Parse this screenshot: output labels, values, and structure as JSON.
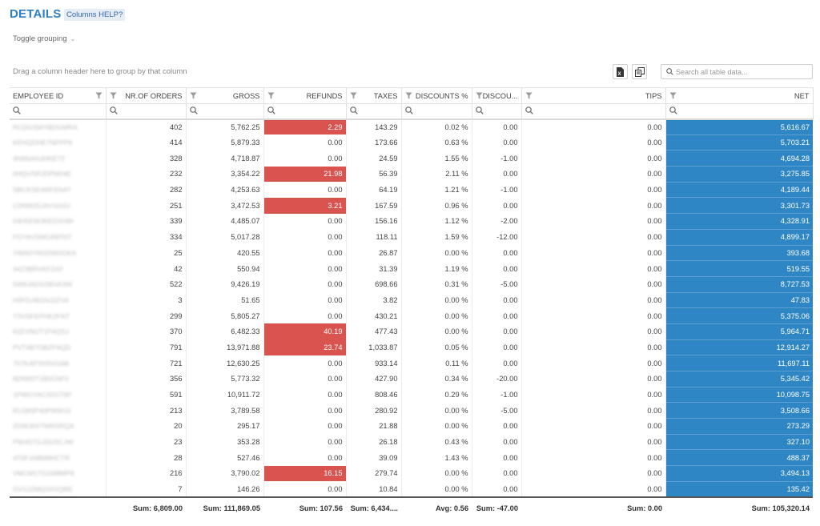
{
  "page": {
    "title": "DETAILS",
    "help_label": "Columns HELP?"
  },
  "grouping": {
    "toggle_label": "Toggle grouping",
    "drag_hint": "Drag a column header here to group by that column"
  },
  "toolbar": {
    "search_placeholder": "Search all table data...",
    "export_excel_icon": "excel-export-icon",
    "column_chooser_icon": "column-chooser-icon"
  },
  "colors": {
    "accent": "#2d7fc1",
    "net_highlight": "#2f86c5",
    "refund_highlight": "#d9534f"
  },
  "columns": [
    "EMPLOYEE ID",
    "NR.OF ORDERS",
    "GROSS",
    "REFUNDS",
    "TAXES",
    "DISCOUNTS %",
    "DISCOU...",
    "TIPS",
    "NET"
  ],
  "rows": [
    {
      "emp": "RCDGSMYBDGMRA",
      "orders": "402",
      "gross": "5,762.25",
      "refunds": "2.29",
      "taxes": "143.29",
      "disc_pct": "0.02 %",
      "disc": "0.00",
      "tips": "0.00",
      "net": "5,616.67"
    },
    {
      "emp": "KEHQDHE7NFPP6",
      "orders": "414",
      "gross": "5,879.33",
      "refunds": "0.00",
      "taxes": "173.66",
      "disc_pct": "0.63 %",
      "disc": "0.00",
      "tips": "0.00",
      "net": "5,703.21"
    },
    {
      "emp": "4N6NAHJHKE72",
      "orders": "328",
      "gross": "4,718.87",
      "refunds": "0.00",
      "taxes": "24.59",
      "disc_pct": "1.55 %",
      "disc": "-1.00",
      "tips": "0.00",
      "net": "4,694.28"
    },
    {
      "emp": "0HQVSRJDPM04E",
      "orders": "232",
      "gross": "3,354.22",
      "refunds": "21.98",
      "taxes": "56.39",
      "disc_pct": "2.11 %",
      "disc": "0.00",
      "tips": "0.00",
      "net": "3,275.85"
    },
    {
      "emp": "SBCKSEARFEN47",
      "orders": "282",
      "gross": "4,253.63",
      "refunds": "0.00",
      "taxes": "64.19",
      "disc_pct": "1.21 %",
      "disc": "-1.00",
      "tips": "0.00",
      "net": "4,189.44"
    },
    {
      "emp": "C0NW25JAYGG0J",
      "orders": "251",
      "gross": "3,472.53",
      "refunds": "3.21",
      "taxes": "167.59",
      "disc_pct": "0.96 %",
      "disc": "0.00",
      "tips": "0.00",
      "net": "3,301.73"
    },
    {
      "emp": "04H5EWJKEDXHW",
      "orders": "339",
      "gross": "4,485.07",
      "refunds": "0.00",
      "taxes": "156.16",
      "disc_pct": "1.12 %",
      "disc": "-2.00",
      "tips": "0.00",
      "net": "4,328.91"
    },
    {
      "emp": "FDY6VSWGR8T6T",
      "orders": "334",
      "gross": "5,017.28",
      "refunds": "0.00",
      "taxes": "118.11",
      "disc_pct": "1.59 %",
      "disc": "-12.00",
      "tips": "0.00",
      "net": "4,899.17"
    },
    {
      "emp": "YWA0YRGDW0GKA",
      "orders": "25",
      "gross": "420.55",
      "refunds": "0.00",
      "taxes": "26.87",
      "disc_pct": "0.00 %",
      "disc": "0.00",
      "tips": "0.00",
      "net": "393.68"
    },
    {
      "emp": "34Z3BRVKFZAY",
      "orders": "42",
      "gross": "550.94",
      "refunds": "0.00",
      "taxes": "31.39",
      "disc_pct": "1.19 %",
      "disc": "0.00",
      "tips": "0.00",
      "net": "519.55"
    },
    {
      "emp": "5W8JADSSBVA3W",
      "orders": "522",
      "gross": "9,426.19",
      "refunds": "0.00",
      "taxes": "698.66",
      "disc_pct": "0.31 %",
      "disc": "-5.00",
      "tips": "0.00",
      "net": "8,727.53"
    },
    {
      "emp": "H0FDJW1NJ2ZV6",
      "orders": "3",
      "gross": "51.65",
      "refunds": "0.00",
      "taxes": "3.82",
      "disc_pct": "0.00 %",
      "disc": "0.00",
      "tips": "0.00",
      "net": "47.83"
    },
    {
      "emp": "Y3VSFEPHK2FNT",
      "orders": "299",
      "gross": "5,805.27",
      "refunds": "0.00",
      "taxes": "430.21",
      "disc_pct": "0.00 %",
      "disc": "0.00",
      "tips": "0.00",
      "net": "5,375.06"
    },
    {
      "emp": "61EVNUT1P4QSJ",
      "orders": "370",
      "gross": "6,482.33",
      "refunds": "40.19",
      "taxes": "477.43",
      "disc_pct": "0.00 %",
      "disc": "0.00",
      "tips": "0.00",
      "net": "5,964.71"
    },
    {
      "emp": "PVT4B7OBZP4QD",
      "orders": "791",
      "gross": "13,971.88",
      "refunds": "23.74",
      "taxes": "1,033.87",
      "disc_pct": "0.05 %",
      "disc": "0.00",
      "tips": "0.00",
      "net": "12,914.27"
    },
    {
      "emp": "707KAP3XRVG6B",
      "orders": "721",
      "gross": "12,630.25",
      "refunds": "0.00",
      "taxes": "933.14",
      "disc_pct": "0.11 %",
      "disc": "0.00",
      "tips": "0.00",
      "net": "11,697.11"
    },
    {
      "emp": "8DN9ST1B0CNF0",
      "orders": "356",
      "gross": "5,773.32",
      "refunds": "0.00",
      "taxes": "427.90",
      "disc_pct": "0.34 %",
      "disc": "-20.00",
      "tips": "0.00",
      "net": "5,345.42"
    },
    {
      "emp": "1PWGYAC32GT6P",
      "orders": "591",
      "gross": "10,911.72",
      "refunds": "0.00",
      "taxes": "808.46",
      "disc_pct": "0.29 %",
      "disc": "-1.00",
      "tips": "0.00",
      "net": "10,098.75"
    },
    {
      "emp": "R1S9SP40PWWJ2",
      "orders": "213",
      "gross": "3,789.58",
      "refunds": "0.00",
      "taxes": "280.92",
      "disc_pct": "0.00 %",
      "disc": "-5.00",
      "tips": "0.00",
      "net": "3,508.66"
    },
    {
      "emp": "ZDWJ6XTMRSRQA",
      "orders": "20",
      "gross": "295.17",
      "refunds": "0.00",
      "taxes": "21.88",
      "disc_pct": "0.00 %",
      "disc": "0.00",
      "tips": "0.00",
      "net": "273.29"
    },
    {
      "emp": "PW4STGJ0GSCJW",
      "orders": "23",
      "gross": "353.28",
      "refunds": "0.00",
      "taxes": "26.18",
      "disc_pct": "0.43 %",
      "disc": "0.00",
      "tips": "0.00",
      "net": "327.10"
    },
    {
      "emp": "4T0FJABM9HCTR",
      "orders": "28",
      "gross": "527.46",
      "refunds": "0.00",
      "taxes": "39.09",
      "disc_pct": "1.43 %",
      "disc": "0.00",
      "tips": "0.00",
      "net": "488.37"
    },
    {
      "emp": "VMCM1TG1M8MP8",
      "orders": "216",
      "gross": "3,790.02",
      "refunds": "16.15",
      "taxes": "279.74",
      "disc_pct": "0.00 %",
      "disc": "0.00",
      "tips": "0.00",
      "net": "3,494.13"
    },
    {
      "emp": "GV12ZMQ3XVQBE",
      "orders": "7",
      "gross": "146.26",
      "refunds": "0.00",
      "taxes": "10.84",
      "disc_pct": "0.00 %",
      "disc": "0.00",
      "tips": "0.00",
      "net": "135.42"
    }
  ],
  "totals": {
    "orders": "Sum: 6,809.00",
    "gross": "Sum: 111,869.05",
    "refunds": "Sum: 107.56",
    "taxes": "Sum: 6,434....",
    "disc_pct": "Avg: 0.56",
    "disc": "Sum: -47.00",
    "tips": "Sum: 0.00",
    "net": "Sum: 105,320.14"
  }
}
